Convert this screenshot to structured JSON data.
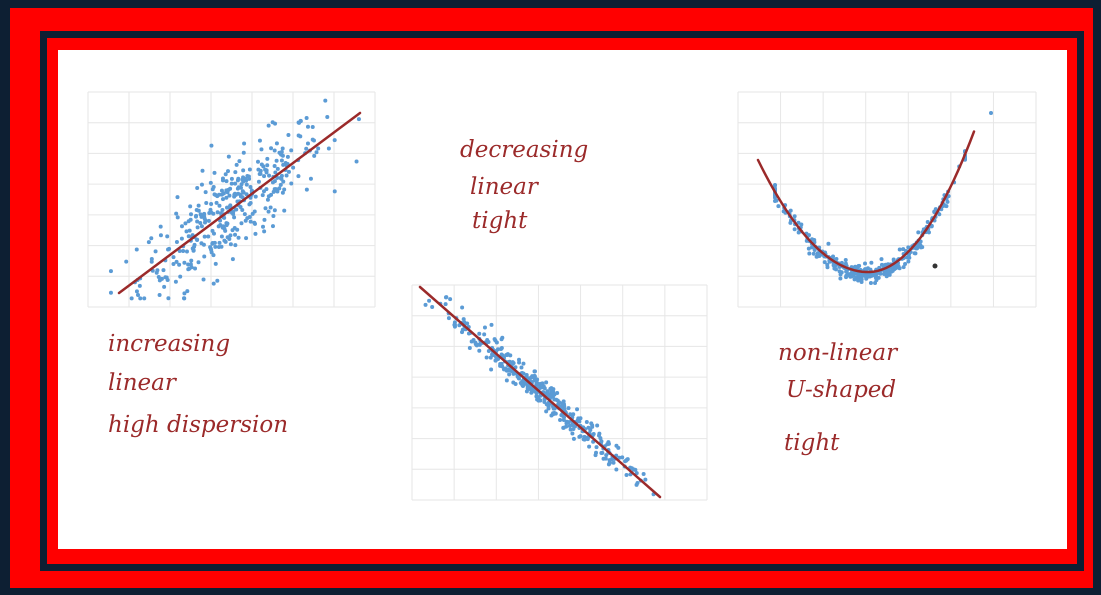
{
  "colors": {
    "frame_red": "#ff0000",
    "frame_navy": "#0d1f33",
    "point": "#5b9bd5",
    "fit_line": "#9b2a2a",
    "annotation": "#9b2a2a",
    "grid": "#e6e6e6"
  },
  "annotations": {
    "plot1": [
      "increasing",
      "linear",
      "high dispersion"
    ],
    "plot2": [
      "decreasing",
      "linear",
      "tight"
    ],
    "plot3": [
      "non-linear",
      "U-shaped",
      "tight"
    ]
  },
  "chart_data": [
    {
      "type": "scatter",
      "title": "",
      "xlabel": "",
      "ylabel": "",
      "grid": true,
      "trend": "increasing linear, high dispersion",
      "fit_line": {
        "type": "linear",
        "slope": 1.0
      },
      "noise": 1.1,
      "point_count": 380
    },
    {
      "type": "scatter",
      "title": "",
      "xlabel": "",
      "ylabel": "",
      "grid": true,
      "trend": "decreasing linear, tight",
      "fit_line": {
        "type": "linear",
        "slope": -1.0
      },
      "noise": 0.25,
      "point_count": 400
    },
    {
      "type": "scatter",
      "title": "",
      "xlabel": "",
      "ylabel": "",
      "grid": true,
      "trend": "non-linear U-shaped, tight",
      "fit_line": {
        "type": "quadratic"
      },
      "noise": 0.15,
      "point_count": 380
    }
  ]
}
